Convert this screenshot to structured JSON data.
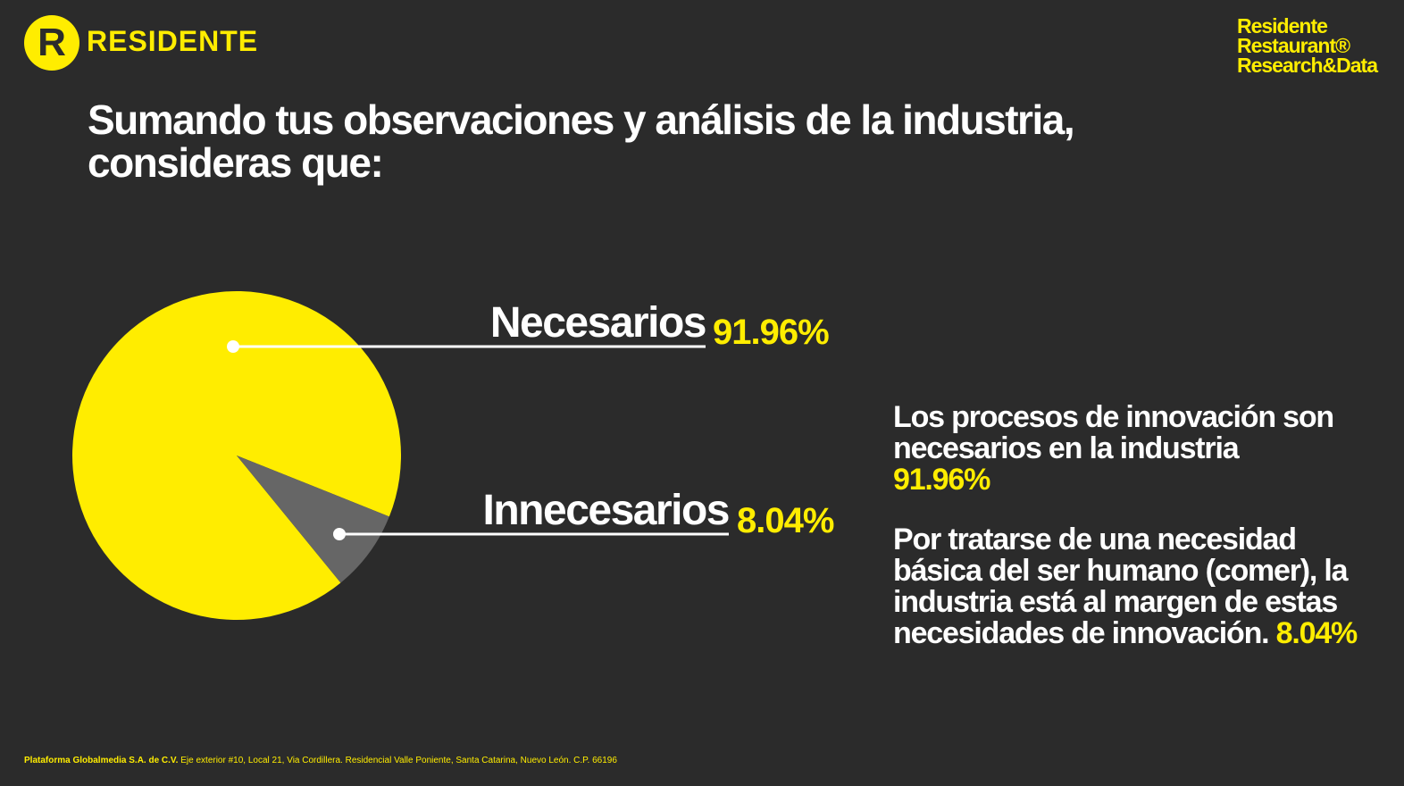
{
  "header": {
    "logo_letter": "R",
    "logo_text": "RESIDENTE",
    "brand_lines": [
      "Residente",
      "Restaurant®",
      "Research&Data"
    ]
  },
  "title": "Sumando tus observaciones y análisis de la industria, consideras que:",
  "chart_data": {
    "type": "pie",
    "title": "Sumando tus observaciones y análisis de la industria, consideras que:",
    "categories": [
      "Necesarios",
      "Innecesarios"
    ],
    "values": [
      91.96,
      8.04
    ],
    "labels": [
      "91.96%",
      "8.04%"
    ],
    "colors": [
      "#ffed00",
      "#666666"
    ]
  },
  "side": {
    "p1_text": "Los procesos de innovación son necesarios en la industria",
    "p1_pct": "91.96%",
    "p2_text": "Por tratarse de una necesidad básica del ser humano (comer), la industria está al margen de estas necesidades de innovación.",
    "p2_pct": "8.04%"
  },
  "footer": {
    "company": "Plataforma Globalmedia S.A. de C.V.",
    "address": "Eje exterior #10, Local 21, Via Cordillera. Residencial Valle Poniente, Santa Catarina, Nuevo León. C.P. 66196"
  }
}
